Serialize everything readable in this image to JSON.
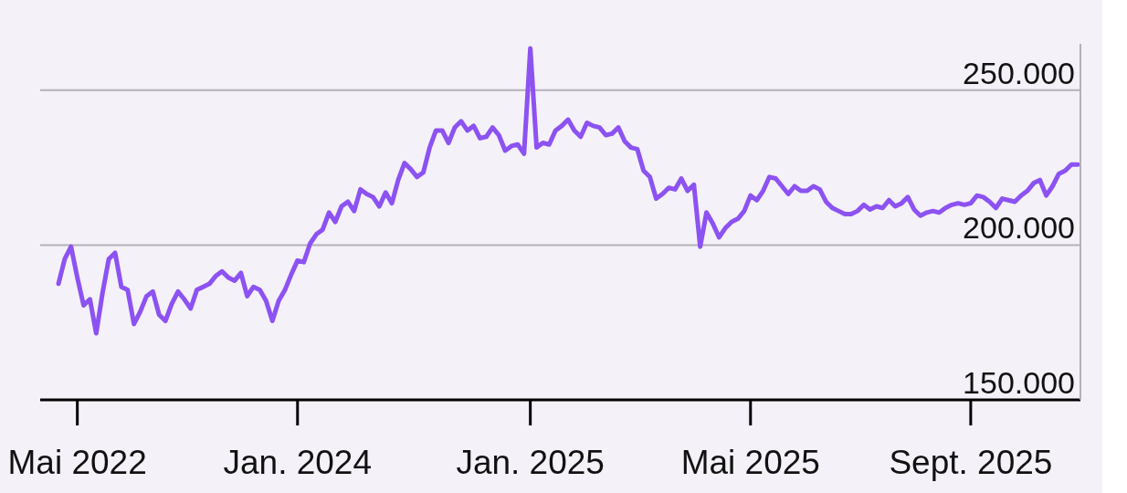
{
  "chart_data": {
    "type": "line",
    "categories": [
      null,
      null,
      null,
      "Mai 2022",
      null,
      null,
      null,
      null,
      null,
      null,
      null,
      null,
      null,
      null,
      null,
      null,
      null,
      null,
      null,
      null,
      null,
      null,
      null,
      null,
      null,
      null,
      null,
      null,
      null,
      null,
      null,
      null,
      null,
      null,
      null,
      null,
      null,
      null,
      "Jan. 2024",
      null,
      null,
      null,
      null,
      null,
      null,
      null,
      null,
      null,
      null,
      null,
      null,
      null,
      null,
      null,
      null,
      null,
      null,
      null,
      null,
      null,
      null,
      null,
      null,
      null,
      null,
      null,
      null,
      null,
      null,
      null,
      null,
      null,
      null,
      null,
      null,
      "Jan. 2025",
      null,
      null,
      null,
      null,
      null,
      null,
      null,
      null,
      null,
      null,
      null,
      null,
      null,
      null,
      null,
      null,
      null,
      null,
      null,
      null,
      null,
      null,
      null,
      null,
      null,
      null,
      null,
      null,
      null,
      null,
      null,
      null,
      null,
      null,
      "Mai 2025",
      null,
      null,
      null,
      null,
      null,
      null,
      null,
      null,
      null,
      null,
      null,
      null,
      null,
      null,
      null,
      null,
      null,
      null,
      null,
      null,
      null,
      null,
      null,
      null,
      null,
      null,
      null,
      null,
      null,
      null,
      null,
      null,
      null,
      null,
      "Sept. 2025",
      null,
      null,
      null,
      null,
      null,
      null,
      null,
      null,
      null,
      null,
      null,
      null,
      null,
      null,
      null,
      null,
      null
    ],
    "values": [
      187500,
      195500,
      199500,
      189500,
      180500,
      182500,
      171500,
      184500,
      195500,
      197500,
      186500,
      185500,
      174500,
      178500,
      183500,
      185000,
      177500,
      175500,
      181000,
      185000,
      182500,
      179500,
      185500,
      186500,
      187500,
      190000,
      191500,
      189500,
      188500,
      191000,
      183500,
      186500,
      185500,
      182000,
      175500,
      182000,
      185500,
      190500,
      195000,
      194500,
      200500,
      203500,
      205000,
      210500,
      207500,
      212500,
      214000,
      211000,
      218000,
      216500,
      215500,
      212500,
      217000,
      213500,
      221000,
      226500,
      224500,
      222000,
      223500,
      231500,
      237000,
      237000,
      233000,
      238000,
      240000,
      237000,
      238500,
      234500,
      235000,
      238000,
      235500,
      230500,
      232000,
      232500,
      229500,
      263500,
      231500,
      233000,
      232500,
      237000,
      238500,
      240500,
      237000,
      235000,
      239500,
      238500,
      238000,
      235500,
      236000,
      238000,
      233500,
      231500,
      231000,
      224000,
      222000,
      215000,
      216500,
      218500,
      218000,
      221500,
      217500,
      219500,
      199500,
      210500,
      207000,
      202500,
      205500,
      207500,
      208500,
      211000,
      216000,
      214500,
      217500,
      222000,
      221500,
      219000,
      216500,
      219000,
      217500,
      217500,
      219000,
      218000,
      214000,
      212000,
      211000,
      210000,
      210000,
      211000,
      213000,
      211500,
      212500,
      212000,
      214500,
      212500,
      213500,
      215500,
      211500,
      209500,
      210500,
      211000,
      210500,
      212000,
      213000,
      213500,
      213000,
      213500,
      216000,
      215500,
      214000,
      212000,
      215000,
      214500,
      214000,
      216000,
      217500,
      220000,
      221000,
      216000,
      219000,
      223000,
      224000,
      226000,
      226000
    ],
    "color": "#8c52f2",
    "ylim": [
      150000,
      265000
    ],
    "yticks": [
      {
        "value": 150000,
        "label": "150.000"
      },
      {
        "value": 200000,
        "label": "200.000"
      },
      {
        "value": 250000,
        "label": "250.000"
      }
    ],
    "grid": "y"
  }
}
